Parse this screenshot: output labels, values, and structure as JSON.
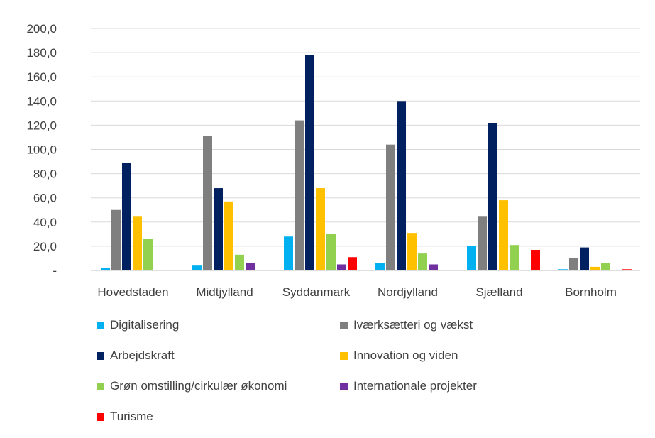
{
  "chart_data": {
    "type": "bar",
    "title": "",
    "xlabel": "",
    "ylabel": "",
    "ylim": [
      0,
      200
    ],
    "yticks": [
      "-",
      "20,0",
      "40,0",
      "60,0",
      "80,0",
      "100,0",
      "120,0",
      "140,0",
      "160,0",
      "180,0",
      "200,0"
    ],
    "grid": true,
    "legend_position": "bottom",
    "categories": [
      "Hovedstaden",
      "Midtjylland",
      "Syddanmark",
      "Nordjylland",
      "Sjælland",
      "Bornholm"
    ],
    "series": [
      {
        "name": "Digitalisering",
        "color": "#00b0f0",
        "values": [
          2,
          4,
          28,
          6,
          20,
          1
        ]
      },
      {
        "name": "Iværksætteri og vækst",
        "color": "#7f7f7f",
        "values": [
          50,
          111,
          124,
          104,
          45,
          10
        ]
      },
      {
        "name": "Arbejdskraft",
        "color": "#002060",
        "values": [
          89,
          68,
          178,
          140,
          122,
          19
        ]
      },
      {
        "name": "Innovation og viden",
        "color": "#ffc000",
        "values": [
          45,
          57,
          68,
          31,
          58,
          3
        ]
      },
      {
        "name": "Grøn omstilling/cirkulær økonomi",
        "color": "#92d050",
        "values": [
          26,
          13,
          30,
          14,
          21,
          6
        ]
      },
      {
        "name": "Internationale projekter",
        "color": "#7030a0",
        "values": [
          0,
          6,
          5,
          5,
          0,
          0
        ]
      },
      {
        "name": "Turisme",
        "color": "#ff0000",
        "values": [
          0,
          0,
          11,
          0,
          17,
          1
        ]
      }
    ]
  }
}
